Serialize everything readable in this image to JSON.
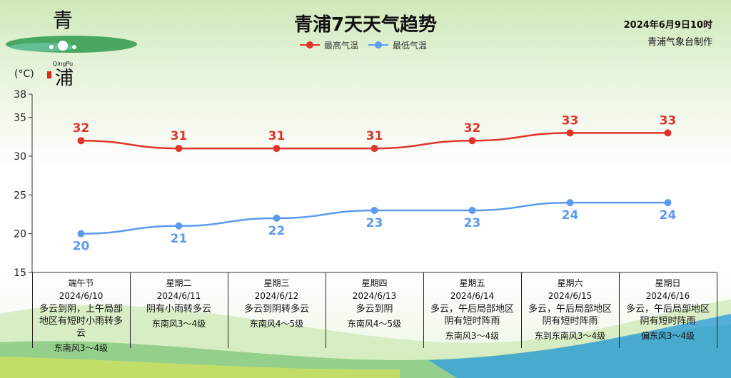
{
  "header": {
    "title": "青浦7天天气趋势",
    "issue_date": "2024年6月9日10时",
    "issuer": "青浦气象台制作",
    "unit": "(°C)"
  },
  "logo": {
    "char_top": "青",
    "char_bottom": "浦",
    "roman": "QingPu"
  },
  "colors": {
    "high": "#e0342b",
    "low": "#5b9bef",
    "axis": "#333333"
  },
  "chart_data": {
    "type": "line",
    "title": "青浦7天天气趋势",
    "ylabel": "(°C)",
    "ylim": [
      15,
      38
    ],
    "yticks": [
      15,
      20,
      25,
      30,
      35,
      38
    ],
    "categories": [
      "2024/6/10",
      "2024/6/11",
      "2024/6/12",
      "2024/6/13",
      "2024/6/14",
      "2024/6/15",
      "2024/6/16"
    ],
    "series": [
      {
        "name": "最高气温",
        "values": [
          32,
          31,
          31,
          31,
          32,
          33,
          33
        ]
      },
      {
        "name": "最低气温",
        "values": [
          20,
          21,
          22,
          23,
          23,
          24,
          24
        ]
      }
    ],
    "legend_position": "top-center",
    "grid": false
  },
  "days": [
    {
      "name": "端午节",
      "date": "2024/6/10",
      "weather": "多云到阴，上午局部地区有短时小雨转多云",
      "wind": "东南风3～4级"
    },
    {
      "name": "星期二",
      "date": "2024/6/11",
      "weather": "阴有小雨转多云",
      "wind": "东南风3～4级"
    },
    {
      "name": "星期三",
      "date": "2024/6/12",
      "weather": "多云到阴转多云",
      "wind": "东南风4～5级"
    },
    {
      "name": "星期四",
      "date": "2024/6/13",
      "weather": "多云到阴",
      "wind": "东南风4～5级"
    },
    {
      "name": "星期五",
      "date": "2024/6/14",
      "weather": "多云，午后局部地区阴有短时阵雨",
      "wind": "东南风3～4级"
    },
    {
      "name": "星期六",
      "date": "2024/6/15",
      "weather": "多云，午后局部地区阴有短时阵雨",
      "wind": "东到东南风3～4级"
    },
    {
      "name": "星期日",
      "date": "2024/6/16",
      "weather": "多云，午后局部地区阴有短时阵雨",
      "wind": "偏东风3～4级"
    }
  ]
}
